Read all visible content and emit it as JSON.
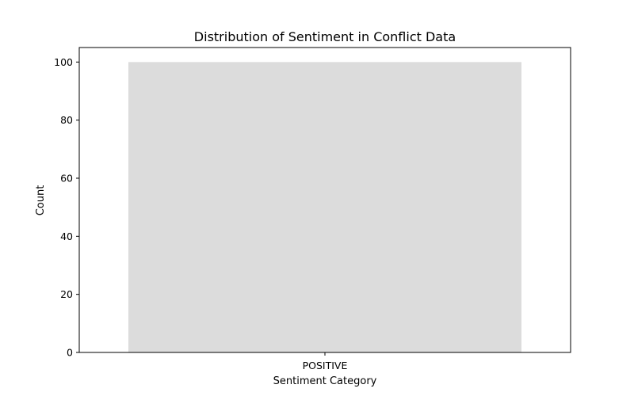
{
  "chart_data": {
    "type": "bar",
    "title": "Distribution of Sentiment in Conflict Data",
    "xlabel": "Sentiment Category",
    "ylabel": "Count",
    "categories": [
      "POSITIVE"
    ],
    "values": [
      100
    ],
    "ylim": [
      0,
      105
    ],
    "yticks": [
      0,
      20,
      40,
      60,
      80,
      100
    ],
    "bar_color": "#dcdcdc",
    "grid": false,
    "legend": "none"
  }
}
